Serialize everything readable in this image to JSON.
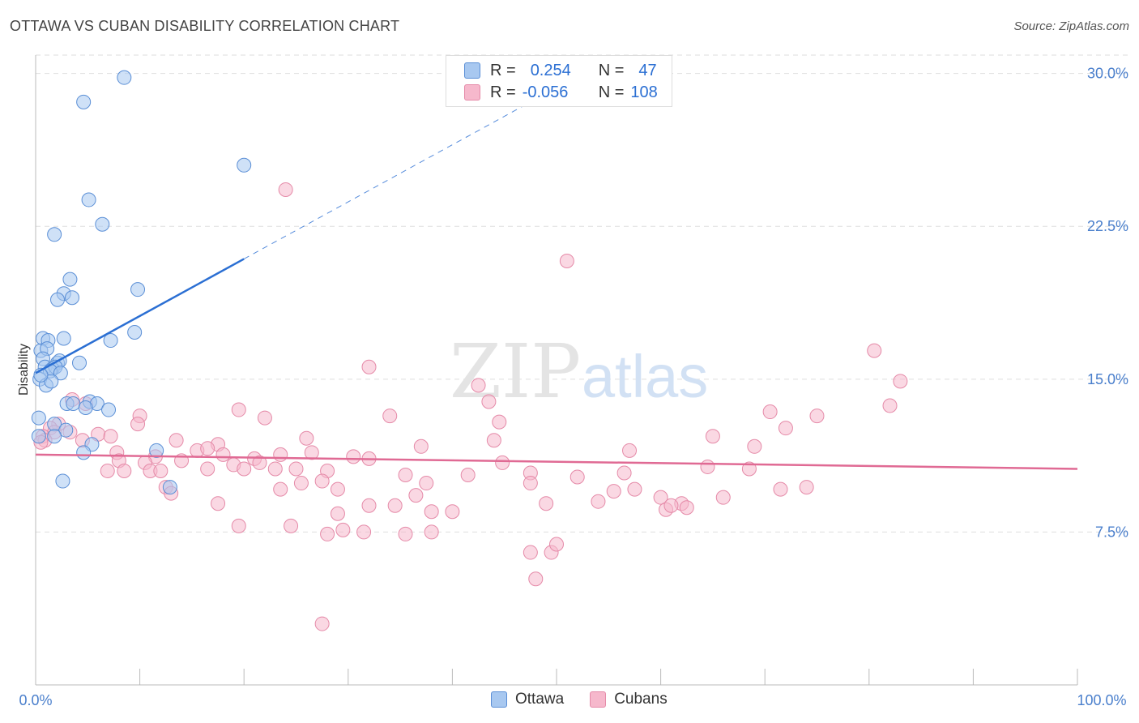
{
  "header": {
    "title": "OTTAWA VS CUBAN DISABILITY CORRELATION CHART",
    "source": "Source: ZipAtlas.com"
  },
  "legend": {
    "rows": [
      {
        "r_label": "R =",
        "r_value": "0.254",
        "n_label": "N =",
        "n_value": "47"
      },
      {
        "r_label": "R =",
        "r_value": "-0.056",
        "n_label": "N =",
        "n_value": "108"
      }
    ]
  },
  "bottom_legend": {
    "ottawa": "Ottawa",
    "cubans": "Cubans"
  },
  "colors": {
    "ottawa_fill": "#a8c8f0",
    "ottawa_stroke": "#5b8fd6",
    "ottawa_line": "#2b6fd3",
    "cubans_fill": "#f6b8cc",
    "cubans_stroke": "#e58aa8",
    "cubans_line": "#e06a94",
    "tick_text": "#4a7fcc"
  },
  "chart_data": {
    "type": "scatter",
    "title": "OTTAWA VS CUBAN DISABILITY CORRELATION CHART",
    "xlabel": "",
    "ylabel": "Disability",
    "xlim": [
      0,
      100
    ],
    "ylim": [
      0,
      30.9
    ],
    "x_tick_labels": [
      "0.0%",
      "100.0%"
    ],
    "y_ticks": [
      7.5,
      15.0,
      22.5,
      30.0
    ],
    "y_tick_labels": [
      "7.5%",
      "15.0%",
      "22.5%",
      "30.0%"
    ],
    "grid": "horizontal dashed",
    "legend_placement": "top-center",
    "watermark": {
      "left": "ZIP",
      "right": "atlas"
    },
    "series": [
      {
        "name": "Ottawa",
        "r": 0.254,
        "n": 47,
        "trend": {
          "x0": 0,
          "y0": 15.3,
          "x1": 20,
          "y1": 20.9,
          "dashed_to_x": 47
        },
        "points": [
          [
            8.5,
            29.8
          ],
          [
            4.6,
            28.6
          ],
          [
            20.0,
            25.5
          ],
          [
            5.1,
            23.8
          ],
          [
            6.4,
            22.6
          ],
          [
            1.8,
            22.1
          ],
          [
            9.8,
            19.4
          ],
          [
            3.3,
            19.9
          ],
          [
            2.7,
            19.2
          ],
          [
            3.5,
            19.0
          ],
          [
            2.1,
            18.9
          ],
          [
            9.5,
            17.3
          ],
          [
            0.7,
            17.0
          ],
          [
            1.2,
            16.9
          ],
          [
            2.7,
            17.0
          ],
          [
            7.2,
            16.9
          ],
          [
            0.5,
            16.4
          ],
          [
            1.1,
            16.5
          ],
          [
            0.7,
            16.0
          ],
          [
            2.1,
            15.8
          ],
          [
            2.3,
            15.9
          ],
          [
            4.2,
            15.8
          ],
          [
            0.9,
            15.6
          ],
          [
            1.6,
            15.5
          ],
          [
            1.9,
            15.6
          ],
          [
            1.4,
            15.4
          ],
          [
            2.4,
            15.3
          ],
          [
            0.4,
            15.0
          ],
          [
            1.0,
            14.7
          ],
          [
            1.5,
            14.9
          ],
          [
            0.5,
            15.2
          ],
          [
            3.0,
            13.8
          ],
          [
            3.6,
            13.8
          ],
          [
            5.2,
            13.9
          ],
          [
            5.9,
            13.8
          ],
          [
            4.8,
            13.6
          ],
          [
            7.0,
            13.5
          ],
          [
            0.3,
            13.1
          ],
          [
            1.8,
            12.8
          ],
          [
            2.9,
            12.5
          ],
          [
            0.3,
            12.2
          ],
          [
            1.8,
            12.2
          ],
          [
            5.4,
            11.8
          ],
          [
            11.6,
            11.5
          ],
          [
            4.6,
            11.4
          ],
          [
            12.9,
            9.7
          ],
          [
            2.6,
            10.0
          ]
        ]
      },
      {
        "name": "Cubans",
        "r": -0.056,
        "n": 108,
        "trend": {
          "x0": 0,
          "y0": 11.3,
          "x1": 100,
          "y1": 10.6
        },
        "points": [
          [
            24.0,
            24.3
          ],
          [
            51.0,
            20.8
          ],
          [
            80.5,
            16.4
          ],
          [
            32.0,
            15.6
          ],
          [
            42.5,
            14.7
          ],
          [
            83.0,
            14.9
          ],
          [
            3.5,
            14.0
          ],
          [
            4.8,
            13.8
          ],
          [
            19.5,
            13.5
          ],
          [
            34.0,
            13.2
          ],
          [
            43.5,
            13.9
          ],
          [
            70.5,
            13.4
          ],
          [
            75.0,
            13.2
          ],
          [
            82.0,
            13.7
          ],
          [
            10.0,
            13.2
          ],
          [
            22.0,
            13.1
          ],
          [
            44.5,
            12.9
          ],
          [
            9.8,
            12.8
          ],
          [
            2.2,
            12.8
          ],
          [
            1.4,
            12.6
          ],
          [
            1.8,
            12.4
          ],
          [
            3.3,
            12.4
          ],
          [
            6.0,
            12.3
          ],
          [
            0.7,
            12.2
          ],
          [
            0.9,
            12.0
          ],
          [
            0.5,
            11.9
          ],
          [
            4.5,
            12.0
          ],
          [
            7.2,
            12.2
          ],
          [
            13.5,
            12.0
          ],
          [
            17.5,
            11.8
          ],
          [
            26.0,
            12.1
          ],
          [
            37.0,
            11.7
          ],
          [
            44.0,
            12.0
          ],
          [
            57.0,
            11.5
          ],
          [
            65.0,
            12.2
          ],
          [
            69.0,
            11.7
          ],
          [
            72.0,
            12.6
          ],
          [
            7.8,
            11.4
          ],
          [
            11.5,
            11.2
          ],
          [
            15.5,
            11.5
          ],
          [
            16.5,
            11.6
          ],
          [
            18.0,
            11.3
          ],
          [
            21.0,
            11.1
          ],
          [
            23.5,
            11.3
          ],
          [
            26.5,
            11.4
          ],
          [
            30.5,
            11.2
          ],
          [
            32.0,
            11.1
          ],
          [
            8.0,
            11.0
          ],
          [
            10.5,
            10.9
          ],
          [
            14.0,
            11.0
          ],
          [
            19.0,
            10.8
          ],
          [
            21.5,
            10.9
          ],
          [
            25.0,
            10.6
          ],
          [
            28.0,
            10.5
          ],
          [
            35.5,
            10.3
          ],
          [
            44.8,
            10.9
          ],
          [
            47.5,
            10.4
          ],
          [
            52.0,
            10.2
          ],
          [
            56.5,
            10.4
          ],
          [
            64.5,
            10.7
          ],
          [
            68.5,
            10.6
          ],
          [
            6.9,
            10.5
          ],
          [
            8.5,
            10.5
          ],
          [
            11.0,
            10.5
          ],
          [
            12.0,
            10.5
          ],
          [
            16.5,
            10.6
          ],
          [
            20.0,
            10.6
          ],
          [
            23.0,
            10.6
          ],
          [
            27.5,
            10.0
          ],
          [
            37.5,
            9.9
          ],
          [
            41.5,
            10.3
          ],
          [
            47.5,
            9.9
          ],
          [
            57.5,
            9.6
          ],
          [
            60.0,
            9.2
          ],
          [
            62.0,
            8.9
          ],
          [
            12.5,
            9.7
          ],
          [
            13.0,
            9.4
          ],
          [
            23.5,
            9.6
          ],
          [
            25.5,
            9.9
          ],
          [
            29.0,
            9.6
          ],
          [
            36.5,
            9.3
          ],
          [
            49.0,
            8.9
          ],
          [
            54.0,
            9.0
          ],
          [
            55.5,
            9.5
          ],
          [
            60.5,
            8.6
          ],
          [
            61.0,
            8.8
          ],
          [
            62.5,
            8.7
          ],
          [
            17.5,
            8.9
          ],
          [
            29.0,
            8.4
          ],
          [
            32.0,
            8.8
          ],
          [
            34.5,
            8.8
          ],
          [
            38.0,
            8.5
          ],
          [
            40.0,
            8.5
          ],
          [
            31.5,
            7.5
          ],
          [
            24.5,
            7.8
          ],
          [
            28.0,
            7.4
          ],
          [
            29.5,
            7.6
          ],
          [
            35.5,
            7.4
          ],
          [
            38.0,
            7.5
          ],
          [
            19.5,
            7.8
          ],
          [
            47.5,
            6.5
          ],
          [
            49.5,
            6.5
          ],
          [
            50.0,
            6.9
          ],
          [
            48.0,
            5.2
          ],
          [
            27.5,
            3.0
          ],
          [
            74.0,
            9.7
          ],
          [
            71.5,
            9.6
          ],
          [
            66.0,
            9.2
          ]
        ]
      }
    ]
  }
}
